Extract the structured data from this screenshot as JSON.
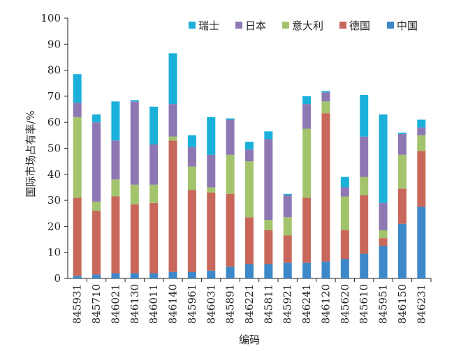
{
  "chart_data": {
    "type": "bar",
    "stacked": true,
    "xlabel": "编码",
    "ylabel": "国际市场占有率/%",
    "ylim": [
      0,
      100
    ],
    "yticks": [
      0,
      10,
      20,
      30,
      40,
      50,
      60,
      70,
      80,
      90,
      100
    ],
    "legend_position": "top-right",
    "categories": [
      "845931",
      "845710",
      "846021",
      "846130",
      "846011",
      "846140",
      "845961",
      "846031",
      "845891",
      "846221",
      "845811",
      "845921",
      "846241",
      "846120",
      "845620",
      "845610",
      "845951",
      "846150",
      "846231"
    ],
    "series": [
      {
        "name": "中国",
        "color": "#3d88c8",
        "values": [
          1.0,
          1.5,
          2.0,
          2.0,
          2.0,
          2.5,
          2.5,
          3.0,
          4.5,
          5.5,
          5.5,
          6.0,
          6.0,
          6.5,
          7.5,
          9.5,
          12.5,
          21.0,
          27.5
        ]
      },
      {
        "name": "德国",
        "color": "#c9685a",
        "values": [
          30.0,
          24.5,
          29.5,
          26.5,
          27.0,
          50.5,
          31.5,
          30.0,
          28.0,
          18.0,
          13.0,
          10.5,
          25.0,
          57.0,
          11.0,
          22.5,
          3.0,
          13.5,
          21.5
        ]
      },
      {
        "name": "意大利",
        "color": "#a3c46d",
        "values": [
          31.0,
          3.5,
          6.5,
          7.5,
          7.0,
          1.5,
          9.0,
          2.0,
          15.0,
          21.5,
          4.0,
          7.0,
          26.5,
          4.5,
          13.0,
          7.0,
          3.0,
          13.0,
          6.0
        ]
      },
      {
        "name": "日本",
        "color": "#8d78b3",
        "values": [
          5.5,
          30.5,
          15.0,
          32.0,
          15.5,
          12.5,
          7.5,
          12.5,
          13.5,
          4.5,
          31.0,
          8.5,
          9.5,
          3.5,
          3.5,
          15.5,
          10.5,
          8.0,
          3.0
        ]
      },
      {
        "name": "瑞士",
        "color": "#1ab0da",
        "values": [
          11.0,
          3.0,
          15.0,
          0.5,
          14.5,
          19.5,
          4.5,
          14.5,
          0.5,
          3.0,
          3.0,
          0.5,
          3.0,
          0.5,
          4.0,
          16.0,
          34.0,
          0.5,
          3.0
        ]
      }
    ]
  }
}
